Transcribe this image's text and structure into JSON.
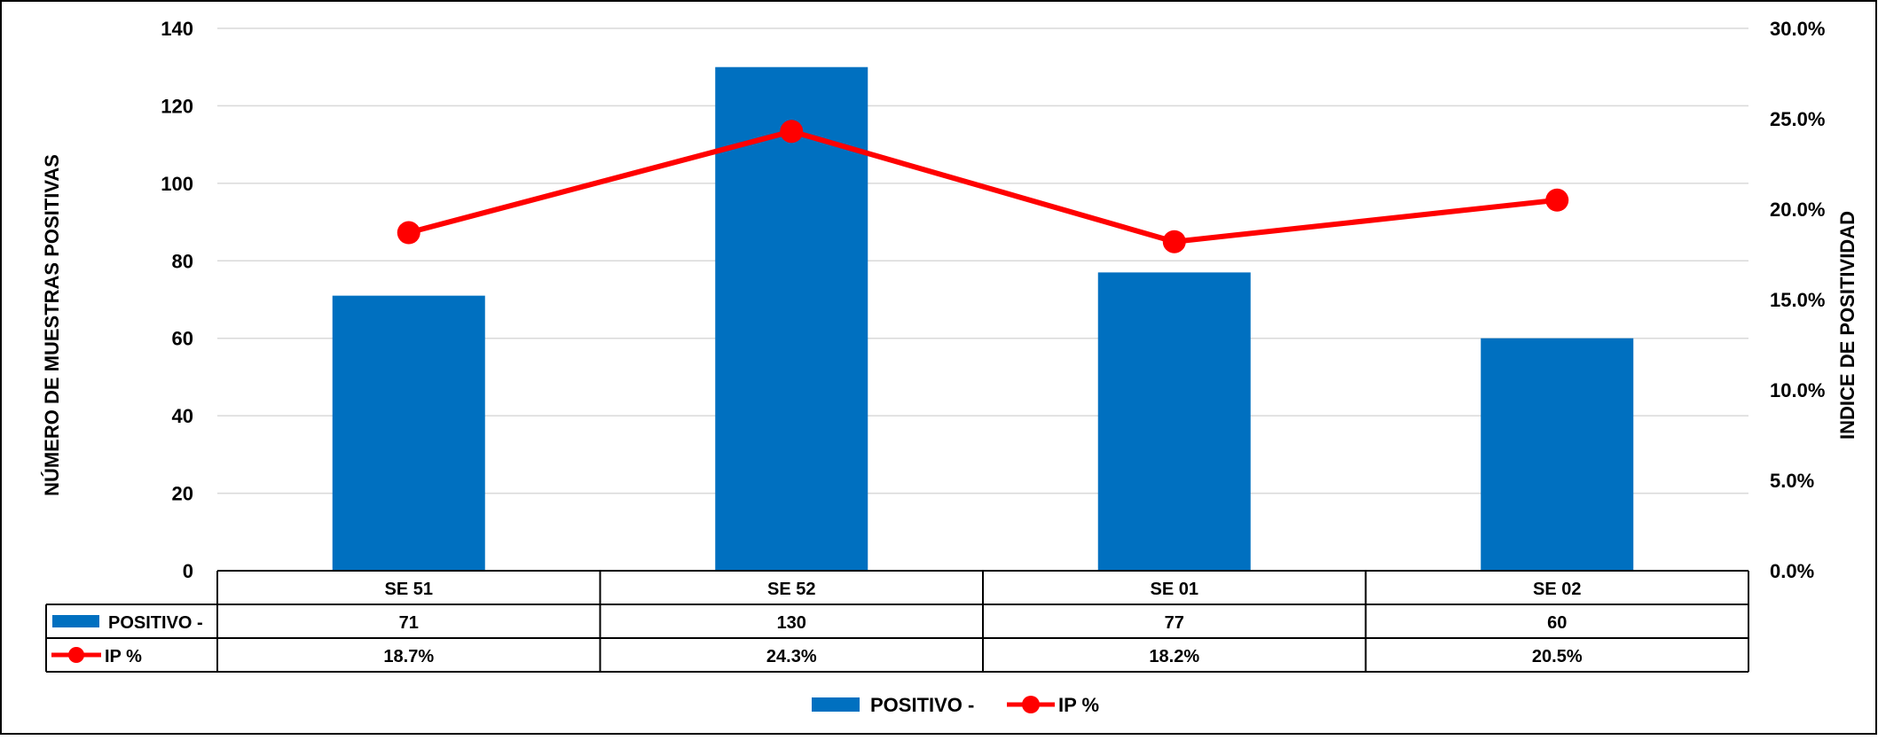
{
  "chart_data": {
    "type": "bar",
    "categories": [
      "SE 51",
      "SE 52",
      "SE 01",
      "SE 02"
    ],
    "series": [
      {
        "name": "POSITIVO -",
        "type": "bar",
        "axis": "left",
        "values": [
          71,
          130,
          77,
          60
        ],
        "color": "#0070C0"
      },
      {
        "name": "IP %",
        "type": "line",
        "axis": "right",
        "values": [
          18.7,
          24.3,
          18.2,
          20.5
        ],
        "labels": [
          "18.7%",
          "24.3%",
          "18.2%",
          "20.5%"
        ],
        "color": "#FF0000"
      }
    ],
    "ylabel": "NÚMERO DE MUESTRAS POSITIVAS",
    "y2label": "INDICE DE POSITIVIDAD",
    "ylim": [
      0,
      140
    ],
    "y2lim": [
      0,
      30
    ],
    "yticks": [
      "0",
      "20",
      "40",
      "60",
      "80",
      "100",
      "120",
      "140"
    ],
    "y2ticks": [
      "0.0%",
      "5.0%",
      "10.0%",
      "15.0%",
      "20.0%",
      "25.0%",
      "30.0%"
    ],
    "grid": true,
    "legend_position": "bottom",
    "data_table": true
  }
}
